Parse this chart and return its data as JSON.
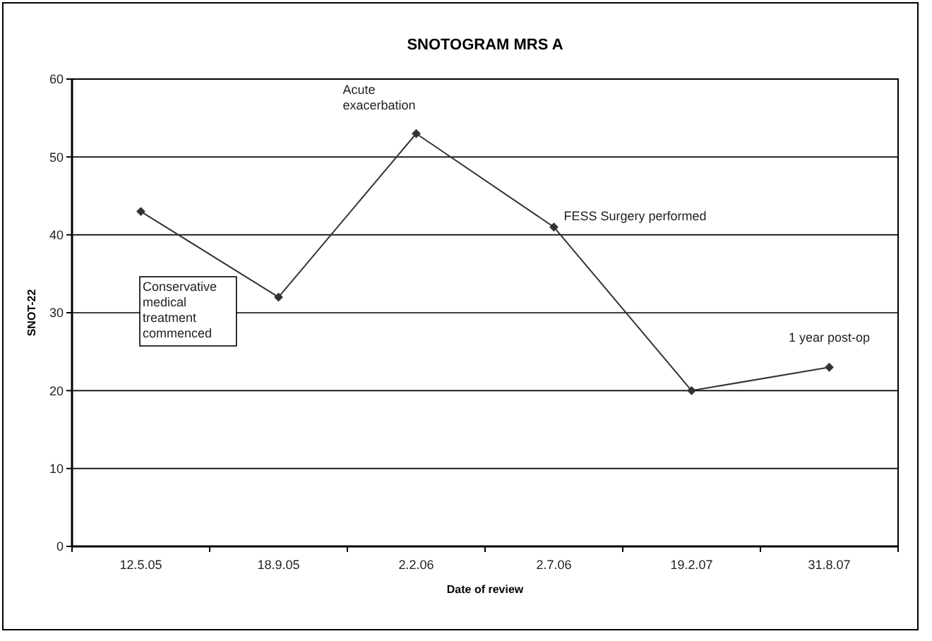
{
  "chart_data": {
    "type": "line",
    "title": "SNOTOGRAM MRS A",
    "xlabel": "Date of review",
    "ylabel": "SNOT-22",
    "categories": [
      "12.5.05",
      "18.9.05",
      "2.2.06",
      "2.7.06",
      "19.2.07",
      "31.8.07"
    ],
    "series": [
      {
        "color": "#333333",
        "values": [
          43,
          32,
          53,
          41,
          20,
          23
        ]
      }
    ],
    "ylim": [
      0,
      60
    ],
    "yticks": [
      0,
      10,
      20,
      30,
      40,
      50,
      60
    ],
    "grid": "y",
    "marker": "diamond",
    "line_style": "solid",
    "annotations": [
      "Conservative medical treatment commenced",
      {
        "text": "Acute exacerbation",
        "x": "2.2.06",
        "y": 53
      },
      {
        "text": "FESS Surgery performed",
        "x": "2.7.06",
        "y": 41
      },
      {
        "text": "1 year post-op",
        "x": "31.8.07",
        "y": 23
      }
    ]
  }
}
